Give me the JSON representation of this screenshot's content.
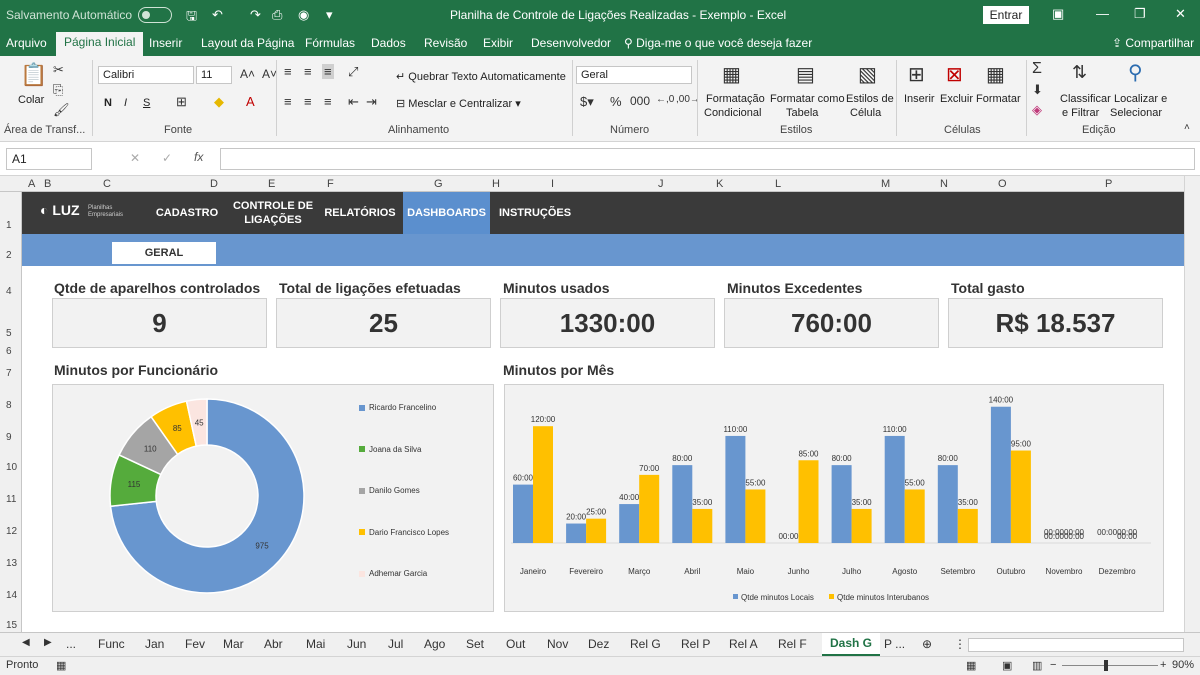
{
  "titlebar": {
    "autosave": "Salvamento Automático",
    "title": "Planilha de Controle de Ligações Realizadas - Exemplo  -  Excel",
    "entrar": "Entrar"
  },
  "ribbon_tabs": [
    "Arquivo",
    "Página Inicial",
    "Inserir",
    "Layout da Página",
    "Fórmulas",
    "Dados",
    "Revisão",
    "Exibir",
    "Desenvolvedor"
  ],
  "search_text": "Diga-me o que você deseja fazer",
  "share_text": "Compartilhar",
  "ribbon": {
    "colar": "Colar",
    "area_transf": "Área de Transf...",
    "font_name": "Calibri",
    "font_size": "11",
    "fonte": "Fonte",
    "bold": "N",
    "italic": "I",
    "underline": "S",
    "wrap_text": "Quebrar Texto Automaticamente",
    "merge_center": "Mesclar e Centralizar",
    "alinhamento": "Alinhamento",
    "number_format": "Geral",
    "numero": "Número",
    "cond_format_1": "Formatação",
    "cond_format_2": "Condicional",
    "format_table_1": "Formatar como",
    "format_table_2": "Tabela",
    "cell_styles_1": "Estilos de",
    "cell_styles_2": "Célula",
    "estilos": "Estilos",
    "inserir": "Inserir",
    "excluir": "Excluir",
    "formatar": "Formatar",
    "celulas": "Células",
    "sort_1": "Classificar",
    "sort_2": "e Filtrar",
    "find_1": "Localizar e",
    "find_2": "Selecionar",
    "edicao": "Edição"
  },
  "formula": {
    "namebox": "A1",
    "fx": "fx"
  },
  "columns": [
    "A",
    "B",
    "C",
    "D",
    "E",
    "F",
    "G",
    "H",
    "I",
    "J",
    "K",
    "L",
    "M",
    "N",
    "O",
    "P"
  ],
  "rows": [
    "1",
    "2",
    "4",
    "5",
    "6",
    "7",
    "8",
    "9",
    "10",
    "11",
    "12",
    "13",
    "14",
    "15"
  ],
  "nav": {
    "logo": "LUZ",
    "logo_sub": "Planilhas Empresariais",
    "items": [
      "CADASTRO",
      "CONTROLE DE LIGAÇÕES",
      "RELATÓRIOS",
      "DASHBOARDS",
      "INSTRUÇÕES"
    ],
    "geral": "GERAL"
  },
  "kpis": [
    {
      "title": "Qtde de aparelhos controlados",
      "value": "9"
    },
    {
      "title": "Total de ligações efetuadas",
      "value": "25"
    },
    {
      "title": "Minutos usados",
      "value": "1330:00"
    },
    {
      "title": "Minutos Excedentes",
      "value": "760:00"
    },
    {
      "title": "Total gasto",
      "value": "R$ 18.537"
    }
  ],
  "section_titles": {
    "donut": "Minutos por Funcionário",
    "bars": "Minutos por Mês"
  },
  "colors": {
    "blue": "#6896cf",
    "green": "#55ab3c",
    "gray": "#a5a5a5",
    "yellow": "#ffc000",
    "pink": "#fbe5e0"
  },
  "chart_data": [
    {
      "type": "pie",
      "donut": true,
      "categories": [
        "Ricardo Francelino",
        "Joana da Silva",
        "Danilo Gomes",
        "Dario Francisco Lopes",
        "Adhemar Garcia"
      ],
      "values": [
        975,
        115,
        110,
        85,
        45
      ],
      "labels": [
        "975",
        "115",
        "110",
        "85",
        "45"
      ],
      "legend": "right"
    },
    {
      "type": "bar",
      "categories": [
        "Janeiro",
        "Fevereiro",
        "Março",
        "Abril",
        "Maio",
        "Junho",
        "Julho",
        "Agosto",
        "Setembro",
        "Outubro",
        "Novembro",
        "Dezembro"
      ],
      "series": [
        {
          "name": "Qtde minutos Locais",
          "values": [
            60,
            20,
            40,
            80,
            110,
            0,
            80,
            110,
            80,
            140,
            0,
            0
          ],
          "labels": [
            "60:00",
            "20:00",
            "40:00",
            "80:00",
            "110:00",
            "00:00",
            "80:00",
            "110:00",
            "80:00",
            "140:00",
            "00:00",
            ""
          ]
        },
        {
          "name": "Qtde minutos Interubanos",
          "values": [
            120,
            25,
            70,
            35,
            55,
            85,
            35,
            55,
            35,
            95,
            0,
            0
          ],
          "labels": [
            "120:00",
            "25:00",
            "70:00",
            "35:00",
            "55:00",
            "85:00",
            "35:00",
            "55:00",
            "35:00",
            "95:00",
            "00:00",
            "00:00"
          ]
        }
      ],
      "extra_labels": [
        "00:0000:00",
        "00:0000:00"
      ],
      "ylim": [
        0,
        150
      ],
      "legend": "bottom"
    }
  ],
  "sheet_tabs": [
    "...",
    "Func",
    "Jan",
    "Fev",
    "Mar",
    "Abr",
    "Mai",
    "Jun",
    "Jul",
    "Ago",
    "Set",
    "Out",
    "Nov",
    "Dez",
    "Rel G",
    "Rel P",
    "Rel A",
    "Rel F",
    "Dash G",
    "P ..."
  ],
  "active_sheet": "Dash G",
  "status": {
    "ready": "Pronto",
    "zoom": "90%"
  }
}
